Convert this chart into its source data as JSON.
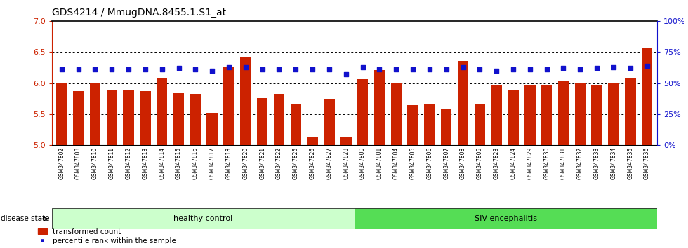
{
  "title": "GDS4214 / MmugDNA.8455.1.S1_at",
  "samples": [
    "GSM347802",
    "GSM347803",
    "GSM347810",
    "GSM347811",
    "GSM347812",
    "GSM347813",
    "GSM347814",
    "GSM347815",
    "GSM347816",
    "GSM347817",
    "GSM347818",
    "GSM347820",
    "GSM347821",
    "GSM347822",
    "GSM347825",
    "GSM347826",
    "GSM347827",
    "GSM347828",
    "GSM347800",
    "GSM347801",
    "GSM347804",
    "GSM347805",
    "GSM347806",
    "GSM347807",
    "GSM347808",
    "GSM347809",
    "GSM347823",
    "GSM347824",
    "GSM347829",
    "GSM347830",
    "GSM347831",
    "GSM347832",
    "GSM347833",
    "GSM347834",
    "GSM347835",
    "GSM347836"
  ],
  "bar_values": [
    6.0,
    5.87,
    6.0,
    5.88,
    5.88,
    5.87,
    6.07,
    5.84,
    5.83,
    5.51,
    6.26,
    6.43,
    5.76,
    5.83,
    5.67,
    5.14,
    5.74,
    5.12,
    6.06,
    6.21,
    6.01,
    5.64,
    5.66,
    5.59,
    6.36,
    5.66,
    5.96,
    5.88,
    5.97,
    5.97,
    6.04,
    6.0,
    5.97,
    6.01,
    6.09,
    6.57
  ],
  "percentile_values": [
    61,
    61,
    61,
    61,
    61,
    61,
    61,
    62,
    61,
    60,
    63,
    63,
    61,
    61,
    61,
    61,
    61,
    57,
    63,
    61,
    61,
    61,
    61,
    61,
    63,
    61,
    60,
    61,
    61,
    61,
    62,
    61,
    62,
    63,
    62,
    64
  ],
  "healthy_count": 18,
  "siv_count": 18,
  "bar_color": "#CC2200",
  "percentile_color": "#1111CC",
  "ylim_left": [
    5.0,
    7.0
  ],
  "ylim_right": [
    0,
    100
  ],
  "yticks_left": [
    5.0,
    5.5,
    6.0,
    6.5,
    7.0
  ],
  "yticks_right": [
    0,
    25,
    50,
    75,
    100
  ],
  "ytick_labels_right": [
    "0%",
    "25%",
    "50%",
    "75%",
    "100%"
  ],
  "grid_values": [
    5.5,
    6.0,
    6.5
  ],
  "healthy_label": "healthy control",
  "siv_label": "SIV encephalitis",
  "disease_state_label": "disease state",
  "legend_bar_label": "transformed count",
  "legend_dot_label": "percentile rank within the sample",
  "healthy_color": "#CCFFCC",
  "siv_color": "#55DD55",
  "xlabel_area_color": "#CCCCCC",
  "top_border_color": "#000000"
}
